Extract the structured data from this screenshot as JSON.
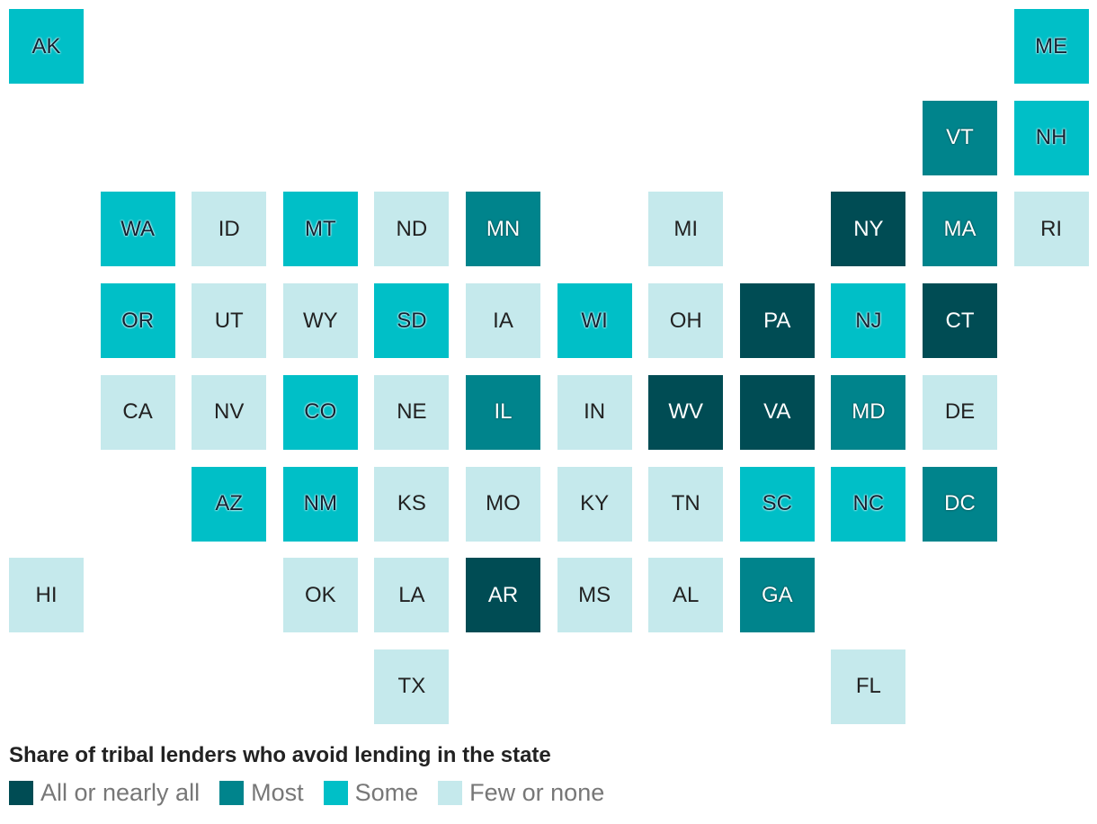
{
  "legend": {
    "title": "Share of tribal lenders who avoid lending in the state",
    "items": [
      {
        "label": "All or nearly all",
        "color": "#004c54"
      },
      {
        "label": "Most",
        "color": "#00848c"
      },
      {
        "label": "Some",
        "color": "#00bfc7"
      },
      {
        "label": "Few or none",
        "color": "#c5e9ec"
      }
    ]
  },
  "tiles": [
    {
      "label": "AK",
      "level": "Some"
    },
    {
      "label": "ME",
      "level": "Some"
    },
    {
      "label": "VT",
      "level": "Most"
    },
    {
      "label": "NH",
      "level": "Some"
    },
    {
      "label": "WA",
      "level": "Some"
    },
    {
      "label": "ID",
      "level": "Few or none"
    },
    {
      "label": "MT",
      "level": "Some"
    },
    {
      "label": "ND",
      "level": "Few or none"
    },
    {
      "label": "MN",
      "level": "Most"
    },
    {
      "label": "MI",
      "level": "Few or none"
    },
    {
      "label": "NY",
      "level": "All or nearly all"
    },
    {
      "label": "MA",
      "level": "Most"
    },
    {
      "label": "RI",
      "level": "Few or none"
    },
    {
      "label": "OR",
      "level": "Some"
    },
    {
      "label": "UT",
      "level": "Few or none"
    },
    {
      "label": "WY",
      "level": "Few or none"
    },
    {
      "label": "SD",
      "level": "Some"
    },
    {
      "label": "IA",
      "level": "Few or none"
    },
    {
      "label": "WI",
      "level": "Some"
    },
    {
      "label": "OH",
      "level": "Few or none"
    },
    {
      "label": "PA",
      "level": "All or nearly all"
    },
    {
      "label": "NJ",
      "level": "Some"
    },
    {
      "label": "CT",
      "level": "All or nearly all"
    },
    {
      "label": "CA",
      "level": "Few or none"
    },
    {
      "label": "NV",
      "level": "Few or none"
    },
    {
      "label": "CO",
      "level": "Some"
    },
    {
      "label": "NE",
      "level": "Few or none"
    },
    {
      "label": "IL",
      "level": "Most"
    },
    {
      "label": "IN",
      "level": "Few or none"
    },
    {
      "label": "WV",
      "level": "All or nearly all"
    },
    {
      "label": "VA",
      "level": "All or nearly all"
    },
    {
      "label": "MD",
      "level": "Most"
    },
    {
      "label": "DE",
      "level": "Few or none"
    },
    {
      "label": "AZ",
      "level": "Some"
    },
    {
      "label": "NM",
      "level": "Some"
    },
    {
      "label": "KS",
      "level": "Few or none"
    },
    {
      "label": "MO",
      "level": "Few or none"
    },
    {
      "label": "KY",
      "level": "Few or none"
    },
    {
      "label": "TN",
      "level": "Few or none"
    },
    {
      "label": "SC",
      "level": "Some"
    },
    {
      "label": "NC",
      "level": "Some"
    },
    {
      "label": "DC",
      "level": "Most"
    },
    {
      "label": "HI",
      "level": "Few or none"
    },
    {
      "label": "OK",
      "level": "Few or none"
    },
    {
      "label": "LA",
      "level": "Few or none"
    },
    {
      "label": "AR",
      "level": "All or nearly all"
    },
    {
      "label": "MS",
      "level": "Few or none"
    },
    {
      "label": "AL",
      "level": "Few or none"
    },
    {
      "label": "GA",
      "level": "Most"
    },
    {
      "label": "TX",
      "level": "Few or none"
    },
    {
      "label": "FL",
      "level": "Few or none"
    }
  ]
}
